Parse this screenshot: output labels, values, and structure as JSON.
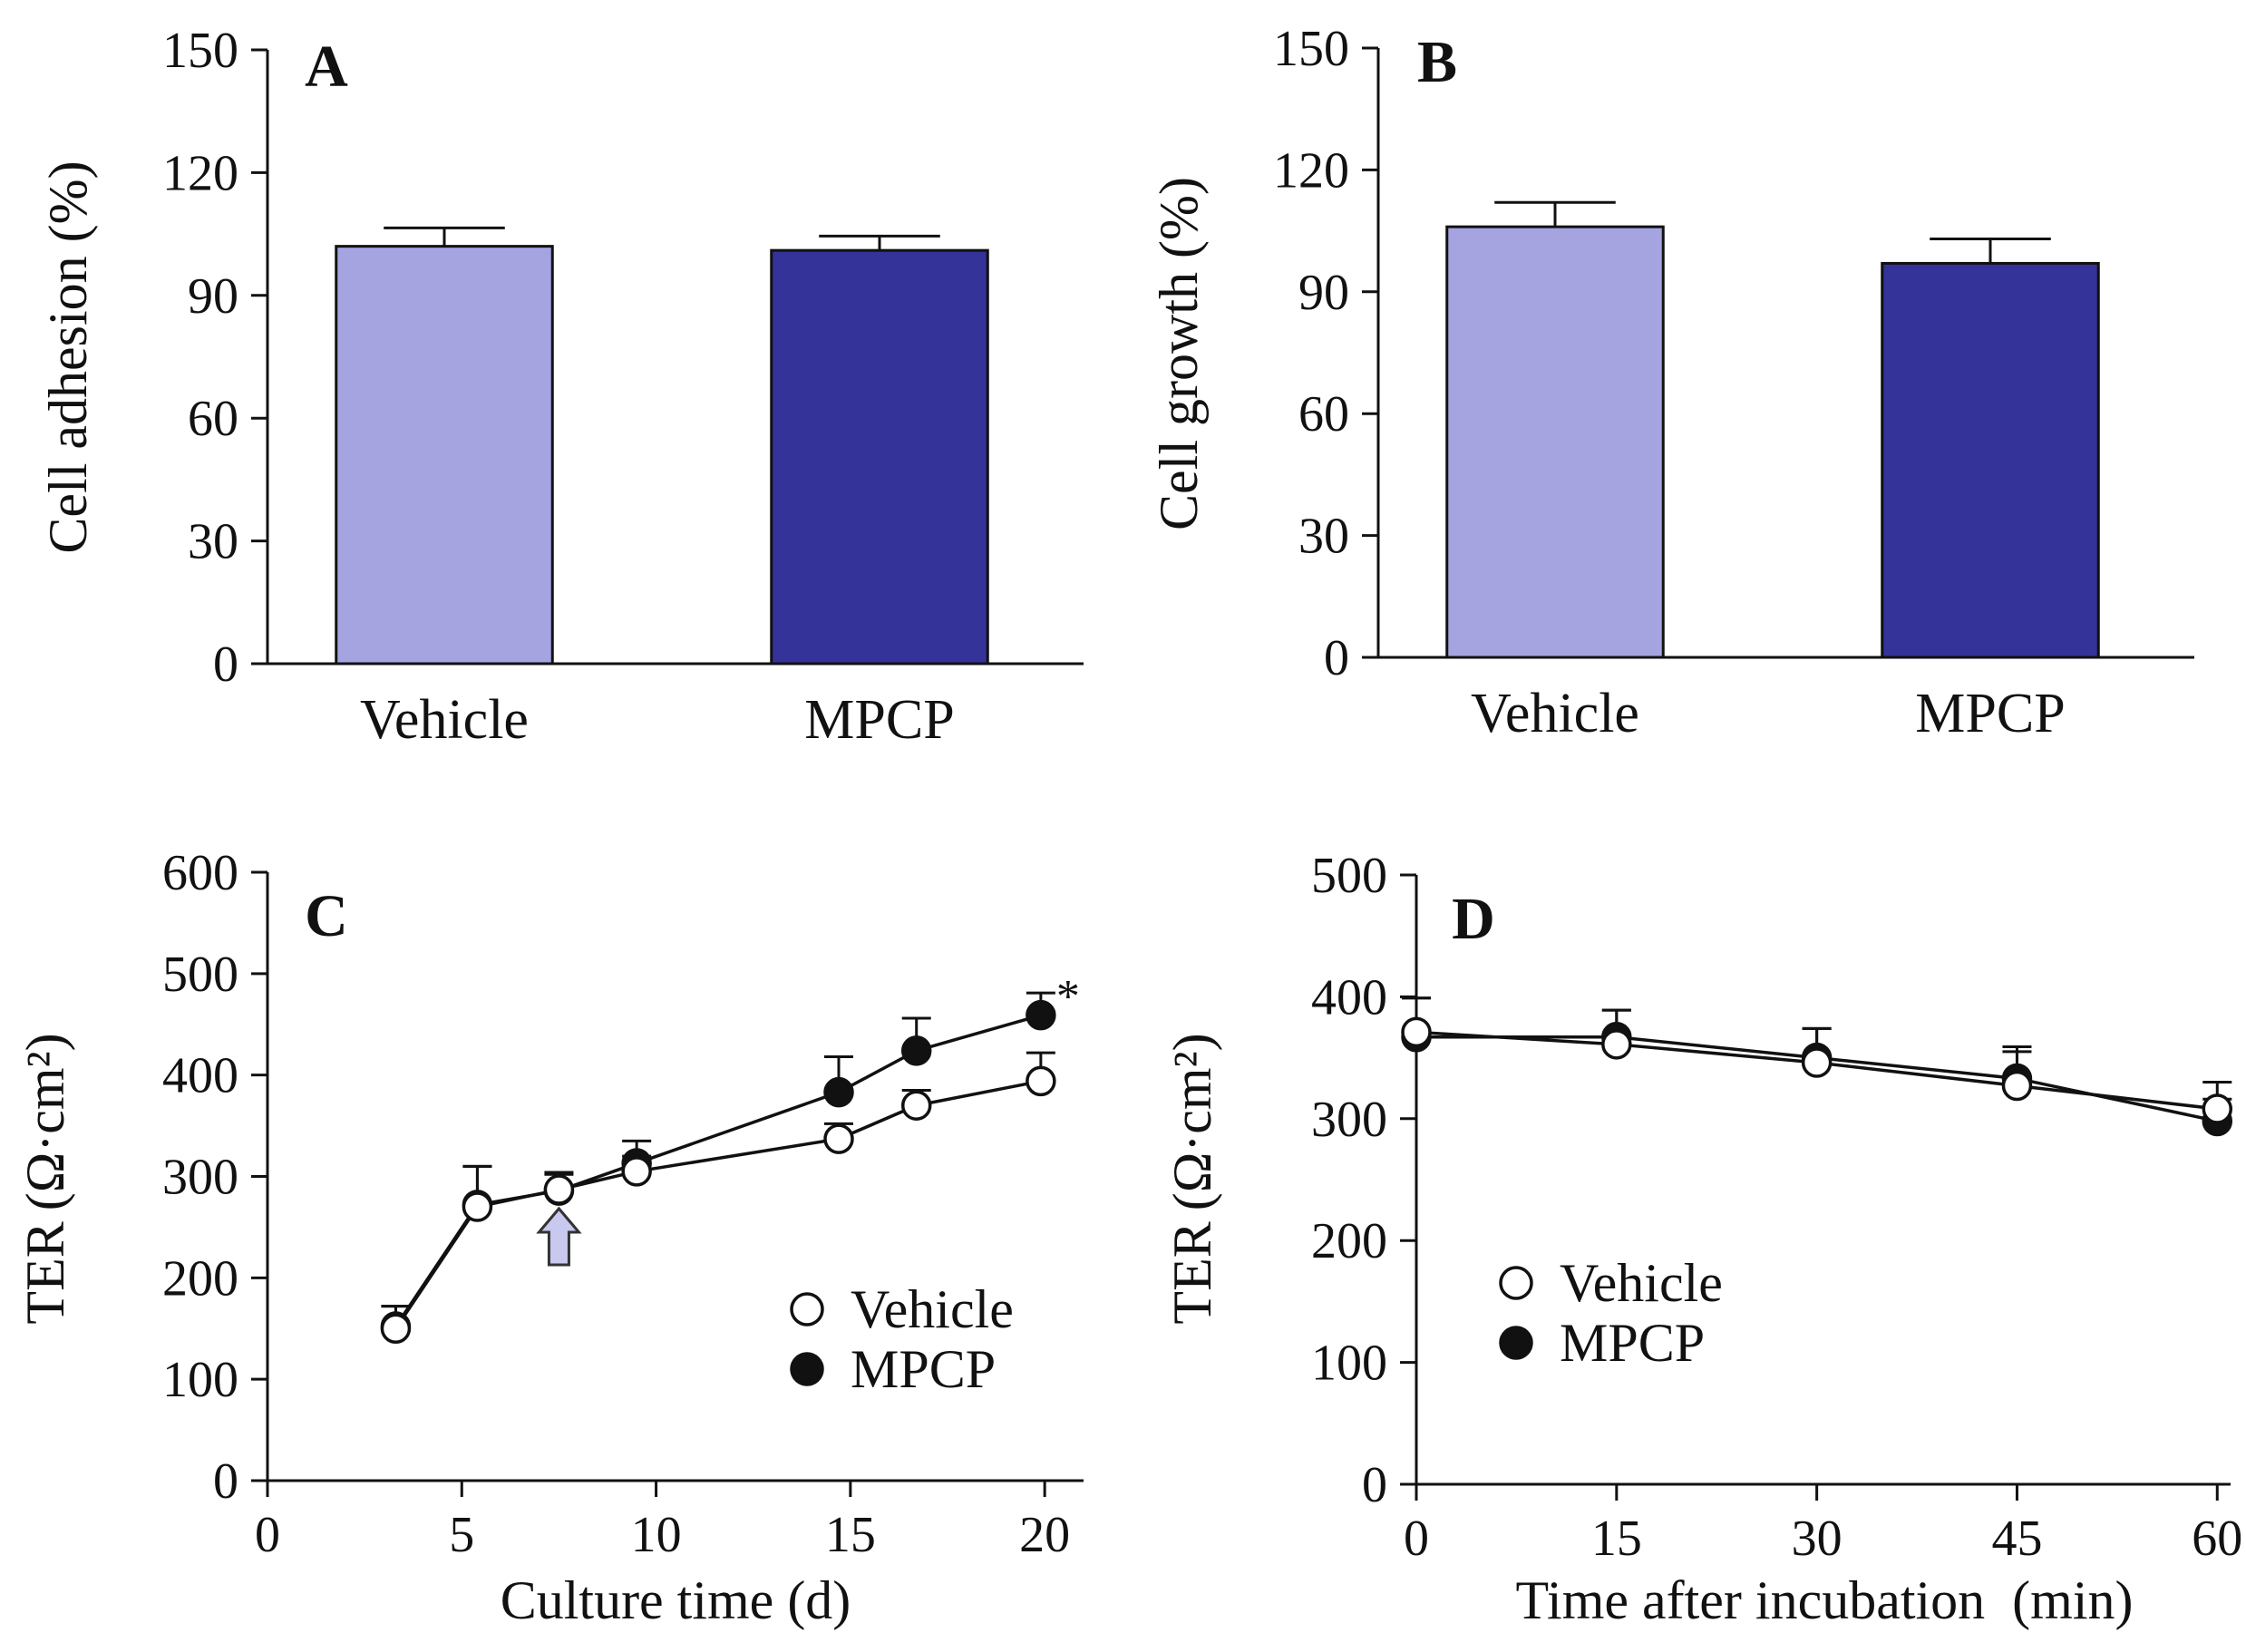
{
  "chart_data": [
    {
      "panel": "A",
      "type": "bar",
      "categories": [
        "Vehicle",
        "MPCP"
      ],
      "values": [
        102,
        101
      ],
      "errors": [
        4.5,
        3.5
      ],
      "colors": [
        "#a5a3e0",
        "#333399"
      ],
      "ylabel": "Cell adhesion (%)",
      "ylim": [
        0,
        150
      ],
      "yticks": [
        0,
        30,
        60,
        90,
        120,
        150
      ]
    },
    {
      "panel": "B",
      "type": "bar",
      "categories": [
        "Vehicle",
        "MPCP"
      ],
      "values": [
        106,
        97
      ],
      "errors": [
        6,
        6
      ],
      "colors": [
        "#a5a3e0",
        "#333399"
      ],
      "ylabel": "Cell growth (%)",
      "ylim": [
        0,
        150
      ],
      "yticks": [
        0,
        30,
        60,
        90,
        120,
        150
      ]
    },
    {
      "panel": "C",
      "type": "line",
      "xlabel": "Culture time (d)",
      "ylabel": "TER (Ω·cm²)",
      "xlim": [
        0,
        21
      ],
      "ylim": [
        0,
        600
      ],
      "xticks": [
        0,
        5,
        10,
        15,
        20
      ],
      "yticks": [
        0,
        100,
        200,
        300,
        400,
        500,
        600
      ],
      "series": [
        {
          "name": "Vehicle",
          "marker": "open-circle",
          "x": [
            3.3,
            5.4,
            7.5,
            9.5,
            14.7,
            16.7,
            19.9
          ],
          "y": [
            150,
            270,
            287,
            305,
            337,
            370,
            394
          ],
          "err": [
            22,
            40,
            15,
            15,
            15,
            15,
            28
          ]
        },
        {
          "name": "MPCP",
          "marker": "filled-circle",
          "x": [
            3.3,
            5.4,
            7.5,
            9.5,
            14.7,
            16.7,
            19.9
          ],
          "y": [
            152,
            272,
            286,
            313,
            383,
            424,
            459
          ],
          "err": [
            20,
            38,
            18,
            22,
            35,
            32,
            22
          ]
        }
      ],
      "annotation": "*",
      "annotation_x": 20.6,
      "annotation_y": 480,
      "treatment_arrow_x": 7.5,
      "arrow_color": "#c9c8ee"
    },
    {
      "panel": "D",
      "type": "line",
      "xlabel": "Time after incubation (min)",
      "ylabel": "TER (Ω·cm²)",
      "xlim": [
        0,
        61
      ],
      "ylim": [
        0,
        500
      ],
      "xticks": [
        0,
        15,
        30,
        45,
        60
      ],
      "yticks": [
        0,
        100,
        200,
        300,
        400,
        500
      ],
      "series": [
        {
          "name": "Vehicle",
          "marker": "open-circle",
          "x": [
            0,
            15,
            30,
            45,
            60
          ],
          "y": [
            371,
            361,
            346,
            327,
            308
          ],
          "err": [
            28,
            28,
            28,
            28,
            22
          ]
        },
        {
          "name": "MPCP",
          "marker": "filled-circle",
          "x": [
            0,
            15,
            30,
            45,
            60
          ],
          "y": [
            367,
            367,
            350,
            333,
            298
          ],
          "err": [
            32,
            22,
            24,
            26,
            18
          ]
        }
      ]
    }
  ]
}
